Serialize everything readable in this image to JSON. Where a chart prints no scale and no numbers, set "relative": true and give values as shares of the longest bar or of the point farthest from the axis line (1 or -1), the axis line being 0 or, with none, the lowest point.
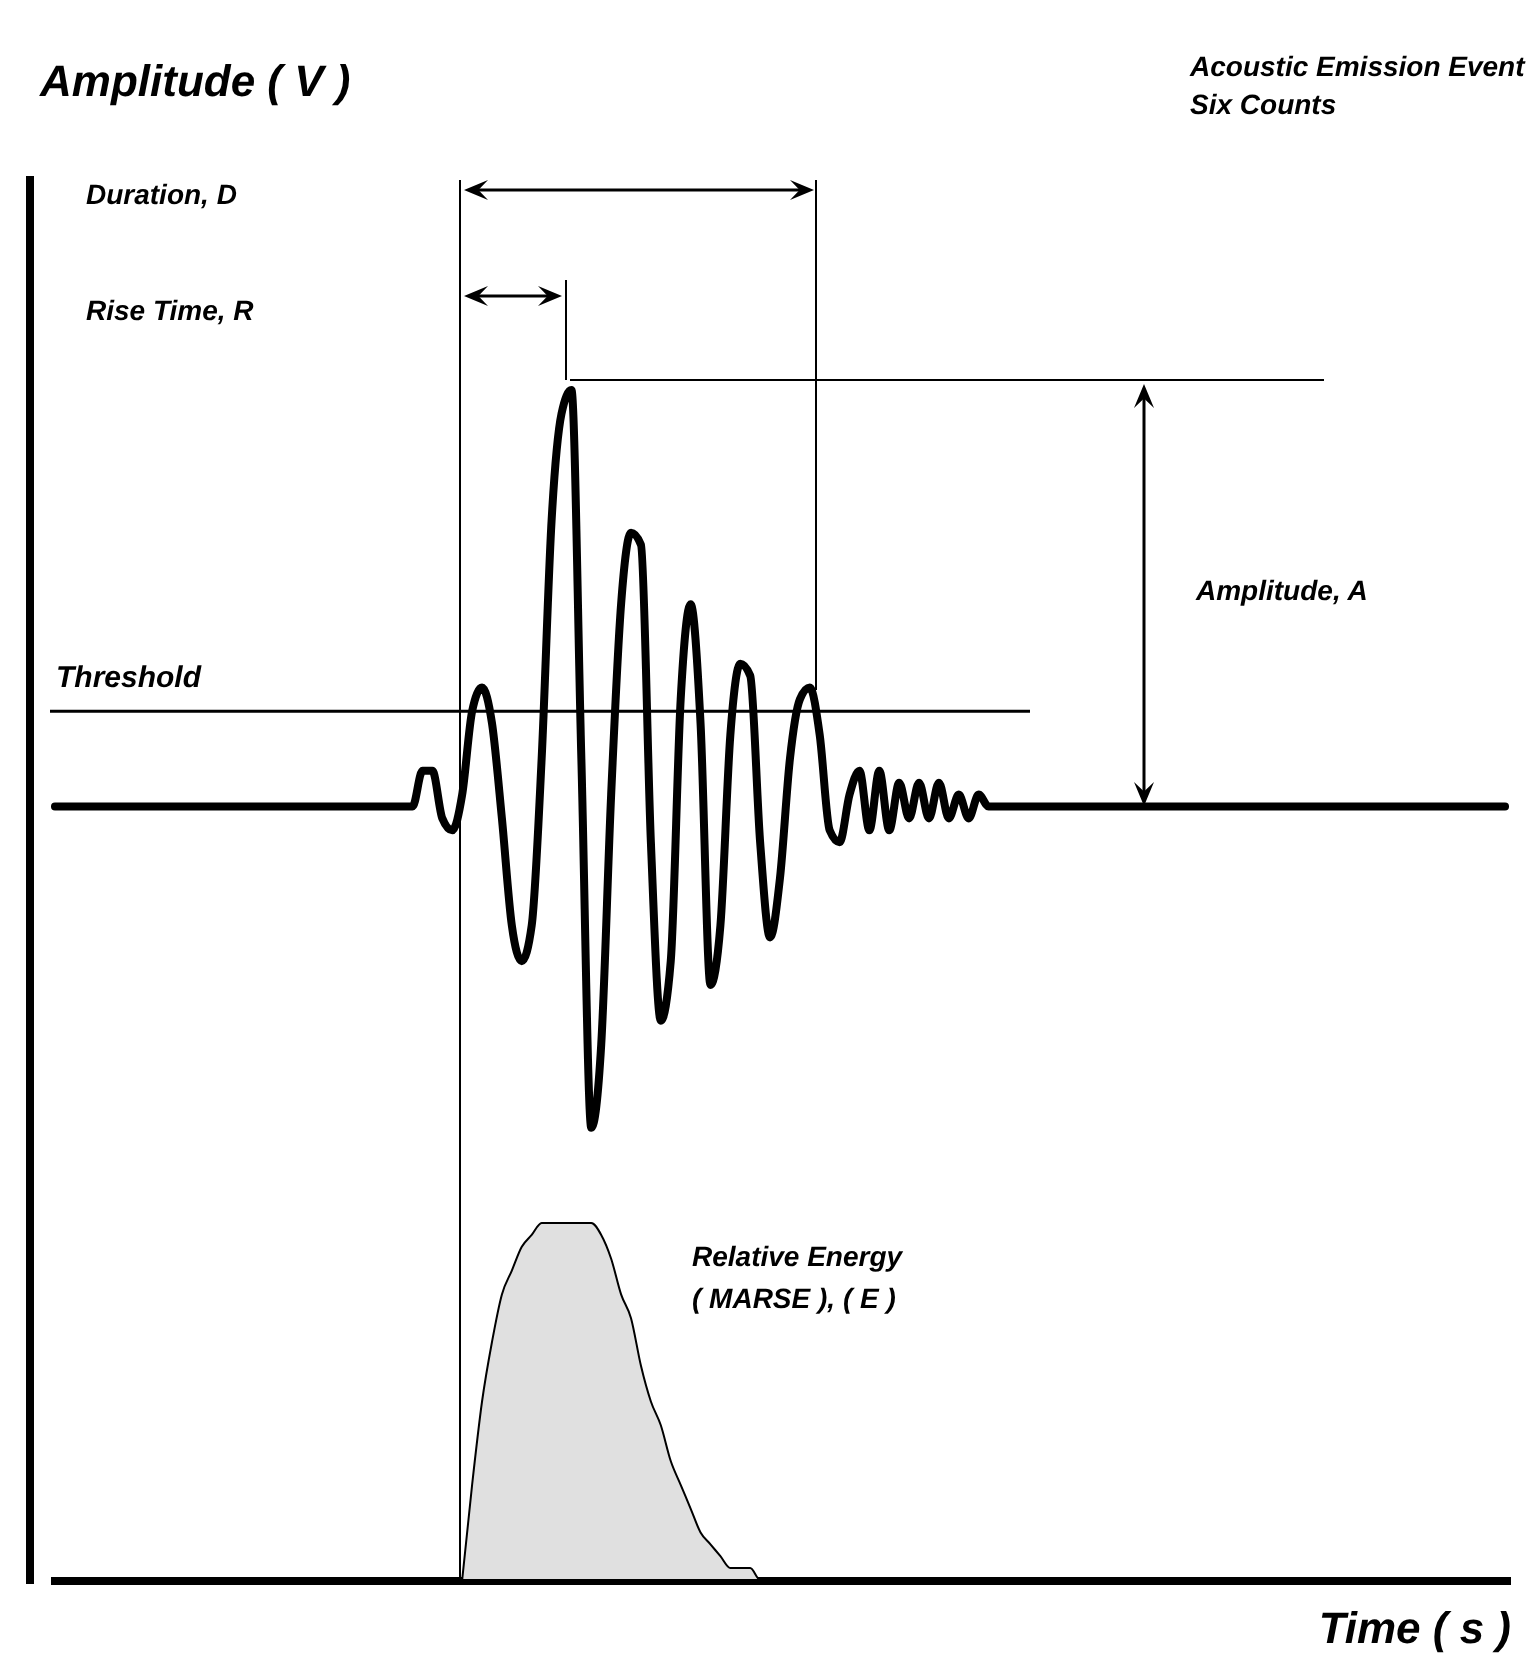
{
  "chart_data": {
    "type": "line",
    "relative": true,
    "xlabel": "Time ( s )",
    "categories": [
      null,
      null,
      null,
      null,
      null,
      null,
      null,
      null,
      null,
      null,
      null,
      null,
      null,
      null,
      null,
      null,
      null,
      null,
      null,
      null,
      null,
      null,
      null,
      null,
      null,
      null,
      null,
      null,
      null,
      null,
      null,
      null,
      null,
      null,
      null,
      null,
      null,
      null,
      null,
      null,
      null,
      null,
      null,
      null,
      null,
      null,
      null,
      null,
      null,
      null,
      null,
      null,
      null,
      null,
      null,
      null,
      null,
      null,
      null,
      null,
      null,
      null,
      null,
      null,
      null,
      null,
      null,
      null,
      null,
      null,
      null,
      null,
      null,
      null,
      null,
      null,
      null,
      null,
      null,
      null,
      null,
      null,
      null,
      null,
      null,
      null,
      null,
      null,
      null,
      null,
      null,
      null,
      null,
      null,
      null,
      null,
      null,
      null,
      null,
      null,
      null,
      null,
      null,
      null,
      null,
      null,
      null,
      null,
      null,
      null,
      null,
      null,
      null,
      null,
      null,
      null,
      null,
      null,
      null,
      null,
      null,
      null,
      null,
      null,
      null,
      null,
      null,
      null,
      null,
      null,
      null,
      null,
      null,
      null,
      null,
      null,
      null,
      null,
      null,
      null,
      null,
      null,
      null,
      null,
      null,
      null,
      null
    ],
    "series": [
      {
        "type": "area",
        "color": "#e0e0e0",
        "values": [
          null,
          null,
          null,
          null,
          null,
          null,
          null,
          null,
          null,
          null,
          null,
          null,
          null,
          null,
          null,
          null,
          null,
          null,
          null,
          null,
          null,
          null,
          null,
          null,
          null,
          null,
          null,
          null,
          null,
          null,
          null,
          null,
          null,
          null,
          null,
          null,
          null,
          null,
          null,
          null,
          null,
          0,
          0.08,
          0.15,
          0.2,
          0.24,
          0.26,
          0.28,
          0.29,
          0.3,
          0.3,
          0.3,
          0.3,
          0.3,
          0.3,
          0.29,
          0.27,
          0.24,
          0.22,
          0.18,
          0.15,
          0.13,
          0.1,
          0.08,
          0.06,
          0.04,
          0.03,
          0.02,
          0.01,
          0.01,
          0.01,
          0,
          0,
          0,
          0,
          0,
          null,
          null,
          null,
          null,
          null,
          null,
          null,
          null,
          null,
          null,
          null,
          null,
          null,
          null,
          null,
          null,
          null,
          null,
          null,
          null,
          null,
          null,
          null,
          null,
          null,
          null,
          null,
          null,
          null,
          null,
          null,
          null,
          null,
          null,
          null,
          null,
          null,
          null,
          null,
          null,
          null,
          null,
          null,
          null,
          null,
          null,
          null,
          null,
          null,
          null,
          null,
          null,
          null,
          null,
          null,
          null,
          null,
          null,
          null,
          null,
          null,
          null,
          null,
          null,
          null,
          null,
          null,
          null,
          null,
          null,
          null
        ]
      },
      {
        "type": "line",
        "color": "#000000",
        "values": [
          0.65,
          0.65,
          0.65,
          0.65,
          0.65,
          0.65,
          0.65,
          0.65,
          0.65,
          0.65,
          0.65,
          0.65,
          0.65,
          0.65,
          0.65,
          0.65,
          0.65,
          0.65,
          0.65,
          0.65,
          0.65,
          0.65,
          0.65,
          0.65,
          0.65,
          0.65,
          0.65,
          0.65,
          0.65,
          0.65,
          0.65,
          0.65,
          0.65,
          0.65,
          0.65,
          0.65,
          0.65,
          0.68,
          0.68,
          0.64,
          0.63,
          0.66,
          0.73,
          0.75,
          0.72,
          0.64,
          0.55,
          0.52,
          0.55,
          0.69,
          0.89,
          0.98,
          1.0,
          0.69,
          0.38,
          0.45,
          0.66,
          0.82,
          0.88,
          0.87,
          0.62,
          0.47,
          0.52,
          0.74,
          0.82,
          0.72,
          0.5,
          0.55,
          0.71,
          0.77,
          0.76,
          0.62,
          0.54,
          0.59,
          0.69,
          0.74,
          0.75,
          0.71,
          0.63,
          0.62,
          0.66,
          0.68,
          0.63,
          0.68,
          0.63,
          0.67,
          0.64,
          0.67,
          0.64,
          0.67,
          0.64,
          0.66,
          0.64,
          0.66,
          0.65,
          0.65,
          0.65,
          0.65,
          0.65,
          0.65,
          0.65,
          0.65,
          0.65,
          0.65,
          0.65,
          0.65,
          0.65,
          0.65,
          0.65,
          0.65,
          0.65,
          0.65,
          0.65,
          0.65,
          0.65,
          0.65,
          0.65,
          0.65,
          0.65,
          0.65,
          0.65,
          0.65,
          0.65,
          0.65,
          0.65,
          0.65,
          0.65,
          0.65,
          0.65,
          0.65,
          0.65,
          0.65,
          0.65,
          0.65,
          0.65,
          0.65,
          0.65,
          0.65,
          0.65,
          0.65,
          0.65,
          0.65,
          0.65,
          0.65,
          0.65,
          0.65,
          0.65
        ]
      }
    ],
    "ref_lines": [
      {
        "axis": "y",
        "value": 0.73,
        "label": "Threshold",
        "color": "#000000"
      }
    ],
    "annotations": [
      "Duration, D",
      "Rise Time, R",
      "Acoustic Emission Event",
      "Six Counts",
      "Amplitude, A",
      "Relative Energy",
      "( MARSE ), ( E )",
      "Amplitude ( V )"
    ]
  }
}
